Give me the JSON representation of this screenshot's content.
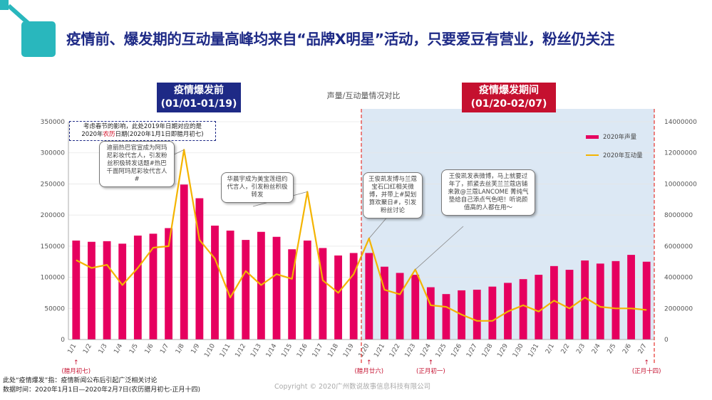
{
  "headline": "疫情前、爆发期的互动量高峰均来自“品牌X明星”活动，只要爱豆有营业，粉丝仍关注",
  "phase_before": {
    "title": "疫情爆发前",
    "range": "(01/01-01/19)"
  },
  "phase_after": {
    "title": "疫情爆发期间",
    "range": "(01/20-02/07)"
  },
  "note": {
    "line1": "考虑春节的影响，此处2019年日期对应的是",
    "line2_pre": "2020年",
    "line2_red": "农历",
    "line2_post": "日期(2020年1月1日即腊月初七)"
  },
  "bubbles": {
    "b1": "迪丽热巴官宣成为阿玛尼彩妆代言人，引发粉丝积极转发话题#热巴千面阿玛尼彩妆代言人#",
    "b2": "华晨宇成为美宝莲纽约代言人，引发粉丝积极转发",
    "b3": "王俊凯发博与兰蔻宝石口红相关微博，并带上#契划算欢聚日#，引发粉丝讨论",
    "b4": "王俊凯发表微博，马上就要过年了，抓紧去丝芙兰兰蔻店铺来敦@兰蔻LANCOME 菁纯气垫给自己添点气色吧！听说颜值高的人都在用～"
  },
  "footnotes": {
    "line1": "此处“疫情爆发”指：疫情新闻公布后引起广泛相关讨论",
    "line2": "数据时间：2020年1月1日—2020年2月7日(农历腊月初七-正月十四)"
  },
  "copyright": "Copyright © 2020广州数说故事信息科技有限公司",
  "colors": {
    "bar": "#e6005f",
    "line": "#f4b400",
    "after_bg": "#dce8f4",
    "divider": "#e8413c",
    "brand": "#1e2a86",
    "red": "#c5102f"
  },
  "chart_data": {
    "type": "bar+line",
    "title": "声量/互动量情况对比",
    "categories": [
      "1/1",
      "1/2",
      "1/3",
      "1/4",
      "1/5",
      "1/6",
      "1/7",
      "1/8",
      "1/9",
      "1/10",
      "1/11",
      "1/12",
      "1/13",
      "1/14",
      "1/15",
      "1/16",
      "1/17",
      "1/18",
      "1/19",
      "1/20",
      "1/21",
      "1/22",
      "1/23",
      "1/24",
      "1/25",
      "1/26",
      "1/27",
      "1/28",
      "1/29",
      "1/30",
      "1/31",
      "2/1",
      "2/2",
      "2/3",
      "2/4",
      "2/5",
      "2/6",
      "2/7"
    ],
    "series": [
      {
        "name": "2020年声量",
        "type": "bar",
        "axis": "left",
        "values": [
          159000,
          157000,
          158000,
          154000,
          167000,
          170000,
          179000,
          249000,
          227000,
          183000,
          175000,
          160000,
          173000,
          165000,
          145000,
          159000,
          147000,
          135000,
          139000,
          139000,
          117000,
          107000,
          104000,
          84000,
          73000,
          79000,
          80000,
          85000,
          91000,
          97000,
          104000,
          118000,
          112000,
          127000,
          122000,
          126000,
          136000,
          125000
        ]
      },
      {
        "name": "2020年互动量",
        "type": "line",
        "axis": "right",
        "values": [
          5100000,
          4600000,
          4800000,
          3500000,
          4600000,
          5900000,
          6000000,
          12200000,
          6400000,
          5200000,
          2700000,
          4400000,
          3500000,
          4200000,
          3900000,
          9500000,
          3800000,
          3000000,
          4200000,
          6500000,
          3200000,
          2900000,
          4500000,
          2200000,
          2100000,
          1600000,
          1200000,
          1200000,
          1800000,
          2200000,
          1800000,
          2500000,
          2000000,
          2700000,
          2100000,
          2000000,
          2000000,
          1900000
        ]
      }
    ],
    "left_axis": {
      "min": 0,
      "max": 350000,
      "ticks": [
        "0",
        "50000",
        "100000",
        "150000",
        "200000",
        "250000",
        "300000",
        "350000"
      ]
    },
    "right_axis": {
      "min": 0,
      "max": 14000000,
      "ticks": [
        "0",
        "2000000",
        "4000000",
        "6000000",
        "8000000",
        "10000000",
        "12000000",
        "14000000"
      ]
    },
    "lunar_markers": [
      {
        "date": "1/1",
        "label": "(腊月初七)"
      },
      {
        "date": "1/20",
        "label": "(腊月廿六)"
      },
      {
        "date": "1/24",
        "label": "(正月初一)"
      },
      {
        "date": "2/7",
        "label": "(正月十四)"
      }
    ],
    "phase_split": "1/20",
    "legend_position": "top-right"
  }
}
